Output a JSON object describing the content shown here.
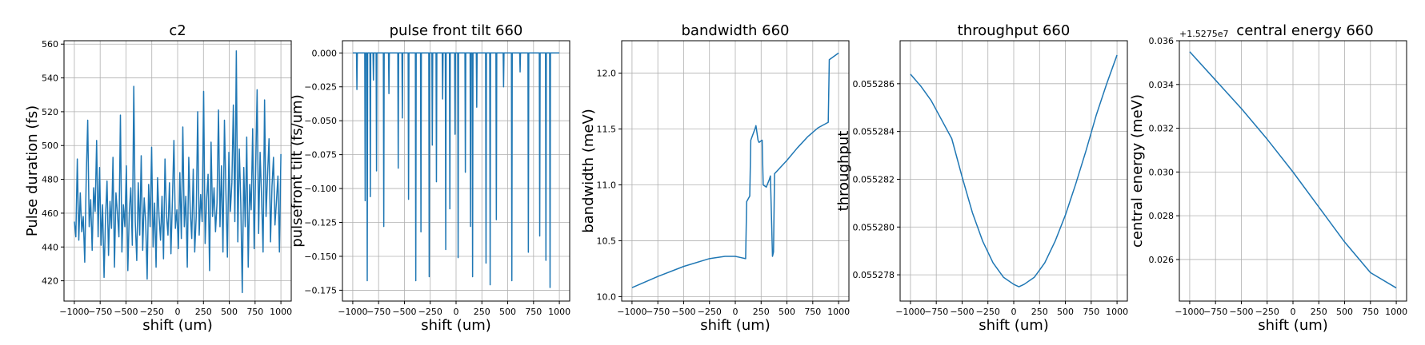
{
  "colors": {
    "line": "#1f77b4",
    "grid": "#b0b0b0",
    "frame": "#000000",
    "background": "#ffffff"
  },
  "chart_data": [
    {
      "type": "line",
      "title": "c2",
      "xlabel": "shift (um)",
      "ylabel": "Pulse duration (fs)",
      "xlim": [
        -1100,
        1100
      ],
      "ylim": [
        408,
        562
      ],
      "grid": true,
      "x_ticks": [
        -1000,
        -750,
        -500,
        -250,
        0,
        250,
        500,
        750,
        1000
      ],
      "x_tick_labels": [
        "−1000",
        "−750",
        "−500",
        "−250",
        "0",
        "250",
        "500",
        "750",
        "1000"
      ],
      "y_ticks": [
        420,
        440,
        460,
        480,
        500,
        520,
        540,
        560
      ],
      "y_tick_labels": [
        "420",
        "440",
        "460",
        "480",
        "500",
        "520",
        "540",
        "560"
      ],
      "series": [
        {
          "name": "pulse duration",
          "x_range": [
            -1000,
            1000
          ],
          "values": [
            455,
            446,
            492,
            444,
            472,
            449,
            458,
            431,
            481,
            515,
            452,
            468,
            438,
            475,
            461,
            503,
            446,
            487,
            441,
            465,
            422,
            458,
            479,
            435,
            467,
            451,
            493,
            428,
            472,
            460,
            446,
            518,
            437,
            465,
            452,
            488,
            426,
            461,
            475,
            441,
            535,
            455,
            432,
            478,
            447,
            494,
            438,
            469,
            455,
            421,
            477,
            452,
            499,
            440,
            466,
            428,
            481,
            458,
            444,
            470,
            433,
            492,
            459,
            447,
            478,
            436,
            468,
            503,
            451,
            462,
            439,
            484,
            445,
            511,
            452,
            470,
            428,
            493,
            461,
            445,
            486,
            437,
            458,
            520,
            447,
            471,
            455,
            532,
            442,
            468,
            483,
            426,
            502,
            458,
            475,
            449,
            466,
            521,
            452,
            488,
            437,
            515,
            472,
            434,
            496,
            461,
            478,
            524,
            455,
            556,
            443,
            498,
            466,
            413,
            487,
            452,
            505,
            428,
            477,
            462,
            510,
            439,
            485,
            533,
            448,
            496,
            469,
            437,
            527,
            458,
            482,
            504,
            443,
            476,
            493,
            453,
            467,
            482,
            437,
            495
          ]
        }
      ]
    },
    {
      "type": "line",
      "title": "pulse front tilt 660",
      "xlabel": "shift (um)",
      "ylabel": "pulsefront tilt (fs/um)",
      "xlim": [
        -1100,
        1100
      ],
      "ylim": [
        -0.183,
        0.009
      ],
      "grid": true,
      "x_ticks": [
        -1000,
        -750,
        -500,
        -250,
        0,
        250,
        500,
        750,
        1000
      ],
      "x_tick_labels": [
        "−1000",
        "−750",
        "−500",
        "−250",
        "0",
        "250",
        "500",
        "750",
        "1000"
      ],
      "y_ticks": [
        0,
        -0.025,
        -0.05,
        -0.075,
        -0.1,
        -0.125,
        -0.15,
        -0.175
      ],
      "y_tick_labels": [
        "0.000",
        "−0.025",
        "−0.050",
        "−0.075",
        "−0.100",
        "−0.125",
        "−0.150",
        "−0.175"
      ],
      "series": [
        {
          "name": "pulse front tilt",
          "baseline": 0,
          "x_range": [
            -1000,
            1000
          ],
          "spikes": [
            {
              "x": -960,
              "y": -0.027
            },
            {
              "x": -880,
              "y": -0.109
            },
            {
              "x": -860,
              "y": -0.168
            },
            {
              "x": -830,
              "y": -0.106
            },
            {
              "x": -800,
              "y": -0.02
            },
            {
              "x": -770,
              "y": -0.087
            },
            {
              "x": -700,
              "y": -0.128
            },
            {
              "x": -650,
              "y": -0.03
            },
            {
              "x": -560,
              "y": -0.085
            },
            {
              "x": -520,
              "y": -0.048
            },
            {
              "x": -460,
              "y": -0.108
            },
            {
              "x": -390,
              "y": -0.168
            },
            {
              "x": -340,
              "y": -0.132
            },
            {
              "x": -260,
              "y": -0.165
            },
            {
              "x": -230,
              "y": -0.068
            },
            {
              "x": -190,
              "y": -0.095
            },
            {
              "x": -130,
              "y": -0.034
            },
            {
              "x": -100,
              "y": -0.145
            },
            {
              "x": -60,
              "y": -0.115
            },
            {
              "x": -10,
              "y": -0.06
            },
            {
              "x": 20,
              "y": -0.151
            },
            {
              "x": 90,
              "y": -0.088
            },
            {
              "x": 140,
              "y": -0.128
            },
            {
              "x": 160,
              "y": -0.165
            },
            {
              "x": 200,
              "y": -0.04
            },
            {
              "x": 290,
              "y": -0.155
            },
            {
              "x": 330,
              "y": -0.171
            },
            {
              "x": 390,
              "y": -0.123
            },
            {
              "x": 460,
              "y": -0.025
            },
            {
              "x": 540,
              "y": -0.168
            },
            {
              "x": 620,
              "y": -0.014
            },
            {
              "x": 700,
              "y": -0.147
            },
            {
              "x": 810,
              "y": -0.135
            },
            {
              "x": 870,
              "y": -0.153
            },
            {
              "x": 910,
              "y": -0.173
            }
          ]
        }
      ]
    },
    {
      "type": "line",
      "title": "bandwidth 660",
      "xlabel": "shift (um)",
      "ylabel": "bandwidth (meV)",
      "xlim": [
        -1100,
        1100
      ],
      "ylim": [
        9.96,
        12.29
      ],
      "grid": true,
      "x_ticks": [
        -1000,
        -750,
        -500,
        -250,
        0,
        250,
        500,
        750,
        1000
      ],
      "x_tick_labels": [
        "−1000",
        "−750",
        "−500",
        "−250",
        "0",
        "250",
        "500",
        "750",
        "1000"
      ],
      "y_ticks": [
        10.0,
        10.5,
        11.0,
        11.5,
        12.0
      ],
      "y_tick_labels": [
        "10.0",
        "10.5",
        "11.0",
        "11.5",
        "12.0"
      ],
      "series": [
        {
          "name": "bandwidth",
          "x": [
            -1000,
            -750,
            -500,
            -250,
            -100,
            0,
            50,
            100,
            110,
            140,
            150,
            190,
            200,
            220,
            230,
            260,
            270,
            300,
            330,
            340,
            360,
            370,
            380,
            400,
            500,
            600,
            700,
            800,
            900,
            910,
            1000
          ],
          "y": [
            10.08,
            10.18,
            10.27,
            10.34,
            10.36,
            10.36,
            10.35,
            10.34,
            10.85,
            10.9,
            11.4,
            11.5,
            11.53,
            11.4,
            11.38,
            11.4,
            11.0,
            10.98,
            11.05,
            11.08,
            10.36,
            10.4,
            11.1,
            11.12,
            11.22,
            11.33,
            11.43,
            11.51,
            11.56,
            12.12,
            12.18
          ]
        }
      ]
    },
    {
      "type": "line",
      "title": "throughput 660",
      "xlabel": "shift (um)",
      "ylabel": "throughput",
      "xlim": [
        -1100,
        1100
      ],
      "ylim": [
        0.0552769,
        0.0552878
      ],
      "grid": true,
      "x_ticks": [
        -1000,
        -750,
        -500,
        -250,
        0,
        250,
        500,
        750,
        1000
      ],
      "x_tick_labels": [
        "−1000",
        "−750",
        "−500",
        "−250",
        "0",
        "250",
        "500",
        "750",
        "1000"
      ],
      "y_ticks": [
        0.055278,
        0.05528,
        0.055282,
        0.055284,
        0.055286
      ],
      "y_tick_labels": [
        "0.055278",
        "0.055280",
        "0.055282",
        "0.055284",
        "0.055286"
      ],
      "series": [
        {
          "name": "throughput",
          "x": [
            -1000,
            -900,
            -800,
            -700,
            -600,
            -500,
            -400,
            -300,
            -200,
            -100,
            0,
            50,
            100,
            200,
            300,
            400,
            500,
            600,
            700,
            800,
            900,
            1000
          ],
          "y": [
            0.0552864,
            0.0552859,
            0.0552853,
            0.0552845,
            0.0552837,
            0.0552821,
            0.0552806,
            0.0552794,
            0.0552785,
            0.0552779,
            0.0552776,
            0.0552775,
            0.0552776,
            0.0552779,
            0.0552785,
            0.0552794,
            0.0552805,
            0.0552818,
            0.0552832,
            0.0552847,
            0.055286,
            0.0552872
          ]
        }
      ]
    },
    {
      "type": "line",
      "title": "central energy 660",
      "xlabel": "shift (um)",
      "ylabel": "central energy (meV)",
      "offset_text": "+1.5275e7",
      "xlim": [
        -1100,
        1100
      ],
      "ylim": [
        0.0241,
        0.036
      ],
      "grid": true,
      "x_ticks": [
        -1000,
        -750,
        -500,
        -250,
        0,
        250,
        500,
        750,
        1000
      ],
      "x_tick_labels": [
        "−1000",
        "−750",
        "−500",
        "−250",
        "0",
        "250",
        "500",
        "750",
        "1000"
      ],
      "y_ticks": [
        0.026,
        0.028,
        0.03,
        0.032,
        0.034,
        0.036
      ],
      "y_tick_labels": [
        "0.026",
        "0.028",
        "0.030",
        "0.032",
        "0.034",
        "0.036"
      ],
      "series": [
        {
          "name": "central energy",
          "x": [
            -1000,
            -750,
            -500,
            -250,
            0,
            250,
            500,
            750,
            1000
          ],
          "y": [
            0.0355,
            0.0342,
            0.0329,
            0.0315,
            0.03,
            0.0284,
            0.0268,
            0.0254,
            0.0247
          ]
        }
      ]
    }
  ]
}
